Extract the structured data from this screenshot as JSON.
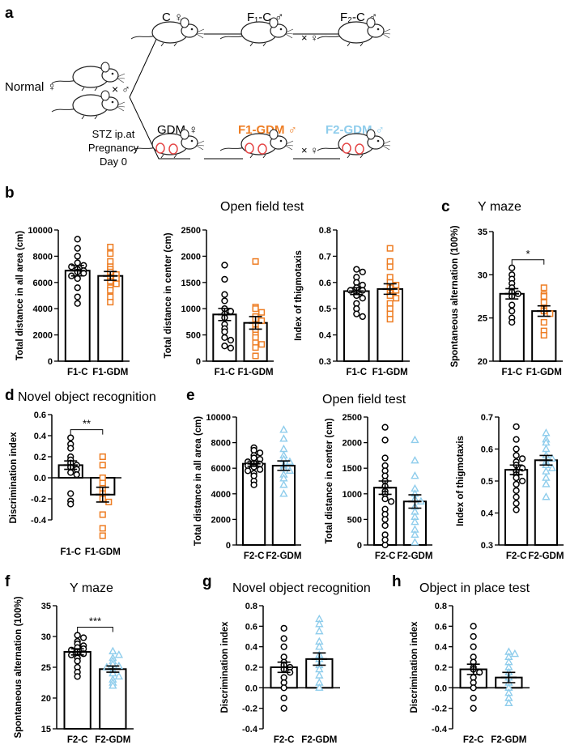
{
  "scheme": {
    "label": "a",
    "normal": "Normal ♀",
    "cross1": "× ♂",
    "c_female": "C ♀",
    "f1c": "F₁-C ♂",
    "f2c": "F₂-C ♂",
    "cross2": "× ♀",
    "cross3": "× ♀",
    "gdm_female": "GDM ♀",
    "f1gdm": "F1-GDM ♂",
    "f2gdm": "F2-GDM ♂",
    "stz": [
      "STZ ip.at",
      "Pregnancy",
      "Day 0"
    ],
    "colors": {
      "orange": "#EE7D23",
      "blue": "#8FCDEC",
      "black": "#000000"
    }
  },
  "titles": {
    "b": "Open field test",
    "c": "Y maze",
    "d": "Novel object recognition",
    "e": "Open field test",
    "f": "Y maze",
    "g": "Novel object recognition",
    "h": "Object in place test"
  },
  "chart_data": [
    {
      "id": "b1",
      "panel": "b",
      "type": "bar",
      "categories": [
        "F1-C",
        "F1-GDM"
      ],
      "ylabel": "Total distance in all area (cm)",
      "ylim": [
        0,
        10000
      ],
      "yticks": [
        "0",
        "2000",
        "4000",
        "6000",
        "8000",
        "10000"
      ],
      "series": [
        {
          "name": "F1-C",
          "mean": 6900,
          "sem": 400,
          "marker": "circle",
          "color": "#000000",
          "points": [
            9300,
            8600,
            8000,
            7500,
            7300,
            7200,
            7000,
            6900,
            6800,
            6700,
            6500,
            6300,
            5600,
            4900,
            4400
          ]
        },
        {
          "name": "F1-GDM",
          "mean": 6500,
          "sem": 330,
          "marker": "square",
          "color": "#EE7D23",
          "points": [
            8700,
            8200,
            7600,
            7200,
            7000,
            6800,
            6600,
            6400,
            6300,
            6100,
            5900,
            5600,
            5400,
            4900,
            4500
          ]
        }
      ]
    },
    {
      "id": "b2",
      "panel": "b",
      "type": "bar",
      "categories": [
        "F1-C",
        "F1-GDM"
      ],
      "ylabel": "Total distance in center (cm)",
      "ylim": [
        0,
        2500
      ],
      "yticks": [
        "0",
        "500",
        "1000",
        "1500",
        "2000",
        "2500"
      ],
      "series": [
        {
          "name": "F1-C",
          "mean": 890,
          "sem": 115,
          "marker": "circle",
          "color": "#000000",
          "points": [
            1830,
            1560,
            1270,
            1150,
            1000,
            950,
            900,
            830,
            700,
            620,
            560,
            450,
            400,
            290,
            250
          ]
        },
        {
          "name": "F1-GDM",
          "mean": 730,
          "sem": 120,
          "marker": "square",
          "color": "#EE7D23",
          "points": [
            1900,
            1030,
            1000,
            930,
            850,
            800,
            770,
            700,
            600,
            500,
            450,
            350,
            320,
            260,
            100
          ]
        }
      ]
    },
    {
      "id": "b3",
      "panel": "b",
      "type": "bar",
      "categories": [
        "F1-C",
        "F1-GDM"
      ],
      "ylabel": "Index of thigmotaxis",
      "ylim": [
        0.3,
        0.8
      ],
      "yticks": [
        "0.3",
        "0.4",
        "0.5",
        "0.6",
        "0.7",
        "0.8"
      ],
      "series": [
        {
          "name": "F1-C",
          "mean": 0.567,
          "sem": 0.013,
          "marker": "circle",
          "color": "#000000",
          "points": [
            0.65,
            0.64,
            0.62,
            0.6,
            0.59,
            0.58,
            0.57,
            0.57,
            0.56,
            0.55,
            0.54,
            0.52,
            0.5,
            0.48,
            0.47
          ]
        },
        {
          "name": "F1-GDM",
          "mean": 0.575,
          "sem": 0.02,
          "marker": "square",
          "color": "#EE7D23",
          "points": [
            0.73,
            0.68,
            0.66,
            0.62,
            0.6,
            0.59,
            0.58,
            0.57,
            0.56,
            0.55,
            0.54,
            0.52,
            0.5,
            0.48,
            0.46
          ]
        }
      ]
    },
    {
      "id": "c",
      "panel": "c",
      "type": "bar",
      "categories": [
        "F1-C",
        "F1-GDM"
      ],
      "ylabel": "Spontaneous alternation (100%)",
      "ylim": [
        20,
        35
      ],
      "yticks": [
        "20",
        "25",
        "30",
        "35"
      ],
      "significance": "*",
      "series": [
        {
          "name": "F1-C",
          "mean": 27.8,
          "sem": 0.6,
          "marker": "circle",
          "color": "#000000",
          "points": [
            30.8,
            30.0,
            29.5,
            29.0,
            28.5,
            28.0,
            27.8,
            27.5,
            26.5,
            25.8,
            25.0,
            24.5
          ]
        },
        {
          "name": "F1-GDM",
          "mean": 25.8,
          "sem": 0.6,
          "marker": "square",
          "color": "#EE7D23",
          "points": [
            28.5,
            27.7,
            27.5,
            26.8,
            26.0,
            25.8,
            25.5,
            24.5,
            23.5,
            23.0
          ]
        }
      ]
    },
    {
      "id": "d",
      "panel": "d",
      "type": "bar",
      "categories": [
        "F1-C",
        "F1-GDM"
      ],
      "ylabel": "Discrimination index",
      "ylim": [
        -0.6,
        0.6
      ],
      "yticks": [
        "-0.4",
        "-0.2",
        "0.0",
        "0.2",
        "0.4",
        "0.6"
      ],
      "significance": "**",
      "series": [
        {
          "name": "F1-C",
          "mean": 0.12,
          "sem": 0.04,
          "marker": "circle",
          "color": "#000000",
          "points": [
            0.38,
            0.32,
            0.28,
            0.2,
            0.17,
            0.14,
            0.12,
            0.1,
            0.08,
            0.05,
            0.03,
            -0.15,
            -0.22,
            -0.25
          ]
        },
        {
          "name": "F1-GDM",
          "mean": -0.16,
          "sem": 0.07,
          "marker": "square",
          "color": "#EE7D23",
          "points": [
            0.2,
            0.12,
            0.0,
            -0.05,
            -0.1,
            -0.15,
            -0.2,
            -0.23,
            -0.35,
            -0.48,
            -0.55
          ]
        }
      ]
    },
    {
      "id": "e1",
      "panel": "e",
      "type": "bar",
      "categories": [
        "F2-C",
        "F2-GDM"
      ],
      "ylabel": "Total distance in all area (cm)",
      "ylim": [
        0,
        10000
      ],
      "yticks": [
        "0",
        "2000",
        "4000",
        "6000",
        "8000",
        "10000"
      ],
      "series": [
        {
          "name": "F2-C",
          "mean": 6350,
          "sem": 200,
          "marker": "circle",
          "color": "#000000",
          "points": [
            7600,
            7400,
            7200,
            7000,
            6800,
            6700,
            6500,
            6400,
            6300,
            6200,
            6100,
            5900,
            5800,
            5600,
            5400,
            5000,
            4700
          ]
        },
        {
          "name": "F2-GDM",
          "mean": 6200,
          "sem": 370,
          "marker": "triangle",
          "color": "#8FCDEC",
          "points": [
            9000,
            8300,
            7500,
            7000,
            6700,
            6500,
            6200,
            6000,
            5800,
            5500,
            5200,
            4700,
            4000
          ]
        }
      ]
    },
    {
      "id": "e2",
      "panel": "e",
      "type": "bar",
      "categories": [
        "F2-C",
        "F2-GDM"
      ],
      "ylabel": "Total distance in center (cm)",
      "ylim": [
        0,
        2500
      ],
      "yticks": [
        "0",
        "500",
        "1000",
        "1500",
        "2000",
        "2500"
      ],
      "series": [
        {
          "name": "F2-C",
          "mean": 1120,
          "sem": 130,
          "marker": "circle",
          "color": "#000000",
          "points": [
            2300,
            2050,
            1700,
            1550,
            1450,
            1350,
            1250,
            1150,
            1050,
            1000,
            900,
            850,
            700,
            600,
            500,
            380,
            200,
            100,
            0
          ]
        },
        {
          "name": "F2-GDM",
          "mean": 850,
          "sem": 130,
          "marker": "triangle",
          "color": "#8FCDEC",
          "points": [
            2050,
            1650,
            1350,
            1100,
            1000,
            900,
            850,
            750,
            650,
            550,
            450,
            300,
            200,
            50
          ]
        }
      ]
    },
    {
      "id": "e3",
      "panel": "e",
      "type": "bar",
      "categories": [
        "F2-C",
        "F2-GDM"
      ],
      "ylabel": "Index of thigmotaxis",
      "ylim": [
        0.3,
        0.7
      ],
      "yticks": [
        "0.3",
        "0.4",
        "0.5",
        "0.6",
        "0.7"
      ],
      "series": [
        {
          "name": "F2-C",
          "mean": 0.535,
          "sem": 0.015,
          "marker": "circle",
          "color": "#000000",
          "points": [
            0.67,
            0.63,
            0.6,
            0.58,
            0.57,
            0.56,
            0.55,
            0.54,
            0.53,
            0.52,
            0.51,
            0.5,
            0.49,
            0.47,
            0.45,
            0.43,
            0.41
          ]
        },
        {
          "name": "F2-GDM",
          "mean": 0.565,
          "sem": 0.015,
          "marker": "triangle",
          "color": "#8FCDEC",
          "points": [
            0.65,
            0.63,
            0.62,
            0.6,
            0.58,
            0.57,
            0.56,
            0.55,
            0.54,
            0.53,
            0.51,
            0.49,
            0.45
          ]
        }
      ]
    },
    {
      "id": "f",
      "panel": "f",
      "type": "bar",
      "categories": [
        "F2-C",
        "F2-GDM"
      ],
      "ylabel": "Spontaneous alternation (100%)",
      "ylim": [
        15,
        35
      ],
      "yticks": [
        "15",
        "20",
        "25",
        "30",
        "35"
      ],
      "significance": "***",
      "series": [
        {
          "name": "F2-C",
          "mean": 27.5,
          "sem": 0.5,
          "marker": "circle",
          "color": "#000000",
          "points": [
            30.2,
            29.8,
            29.2,
            28.8,
            28.5,
            28.2,
            28.0,
            27.8,
            27.5,
            27.2,
            27.0,
            26.5,
            26.0,
            25.0,
            24.2,
            23.5
          ]
        },
        {
          "name": "F2-GDM",
          "mean": 24.7,
          "sem": 0.5,
          "marker": "triangle",
          "color": "#8FCDEC",
          "points": [
            27.6,
            27.0,
            26.5,
            26.0,
            25.5,
            25.2,
            25.0,
            24.5,
            24.0,
            23.5,
            23.0,
            22.5,
            22.0
          ]
        }
      ]
    },
    {
      "id": "g",
      "panel": "g",
      "type": "bar",
      "categories": [
        "F2-C",
        "F2-GDM"
      ],
      "ylabel": "Discrimination index",
      "ylim": [
        -0.4,
        0.8
      ],
      "yticks": [
        "-0.4",
        "-0.2",
        "0.0",
        "0.2",
        "0.4",
        "0.6",
        "0.8"
      ],
      "series": [
        {
          "name": "F2-C",
          "mean": 0.2,
          "sem": 0.05,
          "marker": "circle",
          "color": "#000000",
          "points": [
            0.58,
            0.48,
            0.4,
            0.3,
            0.25,
            0.22,
            0.2,
            0.18,
            0.15,
            0.1,
            0.05,
            0.0,
            -0.1,
            -0.2
          ]
        },
        {
          "name": "F2-GDM",
          "mean": 0.28,
          "sem": 0.06,
          "marker": "triangle",
          "color": "#8FCDEC",
          "points": [
            0.67,
            0.62,
            0.55,
            0.45,
            0.4,
            0.32,
            0.28,
            0.22,
            0.18,
            0.12,
            0.05,
            0.0
          ]
        }
      ]
    },
    {
      "id": "h",
      "panel": "h",
      "type": "bar",
      "categories": [
        "F2-C",
        "F2-GDM"
      ],
      "ylabel": "Discrimination index",
      "ylim": [
        -0.4,
        0.8
      ],
      "yticks": [
        "-0.4",
        "-0.2",
        "0.0",
        "0.2",
        "0.4",
        "0.6",
        "0.8"
      ],
      "series": [
        {
          "name": "F2-C",
          "mean": 0.18,
          "sem": 0.05,
          "marker": "circle",
          "color": "#000000",
          "points": [
            0.6,
            0.5,
            0.4,
            0.3,
            0.25,
            0.2,
            0.18,
            0.15,
            0.1,
            0.05,
            0.0,
            -0.1,
            -0.2
          ]
        },
        {
          "name": "F2-GDM",
          "mean": 0.1,
          "sem": 0.05,
          "marker": "triangle",
          "color": "#8FCDEC",
          "points": [
            0.35,
            0.33,
            0.3,
            0.25,
            0.2,
            0.15,
            0.1,
            0.05,
            0.0,
            -0.05,
            -0.1,
            -0.15
          ]
        }
      ]
    }
  ]
}
